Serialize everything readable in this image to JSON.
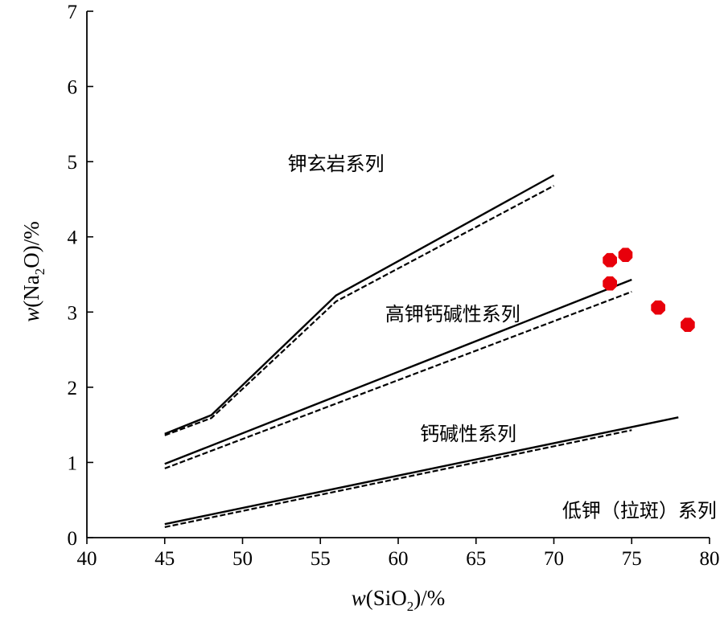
{
  "chart_data": {
    "type": "scatter",
    "title": "",
    "xlabel": {
      "prefix": "w",
      "open": "(SiO",
      "sub": "2",
      "close": ")/%"
    },
    "ylabel": {
      "prefix": "w",
      "open": "(Na",
      "sub": "2",
      "close": "O)/%"
    },
    "xlim": [
      40,
      80
    ],
    "ylim": [
      0,
      7
    ],
    "xticks": [
      40,
      45,
      50,
      55,
      60,
      65,
      70,
      75,
      80
    ],
    "yticks": [
      0,
      1,
      2,
      3,
      4,
      5,
      6,
      7
    ],
    "grid": false,
    "boundary_lines": [
      {
        "style": "solid",
        "points": [
          [
            45,
            1.38
          ],
          [
            48,
            1.63
          ],
          [
            56,
            3.22
          ],
          [
            70,
            4.82
          ]
        ]
      },
      {
        "style": "dashed",
        "points": [
          [
            45,
            1.36
          ],
          [
            48,
            1.59
          ],
          [
            56,
            3.14
          ],
          [
            70,
            4.68
          ]
        ]
      },
      {
        "style": "solid",
        "points": [
          [
            45,
            0.98
          ],
          [
            75,
            3.43
          ]
        ]
      },
      {
        "style": "dashed",
        "points": [
          [
            45,
            0.92
          ],
          [
            75,
            3.27
          ]
        ]
      },
      {
        "style": "solid",
        "points": [
          [
            45,
            0.18
          ],
          [
            78,
            1.6
          ]
        ]
      },
      {
        "style": "dashed",
        "points": [
          [
            45,
            0.14
          ],
          [
            75,
            1.43
          ]
        ]
      }
    ],
    "region_labels": [
      {
        "text": "钾玄岩系列",
        "x": 56.0,
        "y": 4.97
      },
      {
        "text": "高钾钙碱性系列",
        "x": 63.5,
        "y": 2.97
      },
      {
        "text": "钙碱性系列",
        "x": 64.5,
        "y": 1.38
      },
      {
        "text": "低钾（拉斑）系列",
        "x": 75.5,
        "y": 0.36
      }
    ],
    "points": {
      "color": "#e8000b",
      "values": [
        [
          73.6,
          3.69
        ],
        [
          74.6,
          3.76
        ],
        [
          73.6,
          3.38
        ],
        [
          76.7,
          3.06
        ],
        [
          78.6,
          2.83
        ]
      ]
    }
  }
}
